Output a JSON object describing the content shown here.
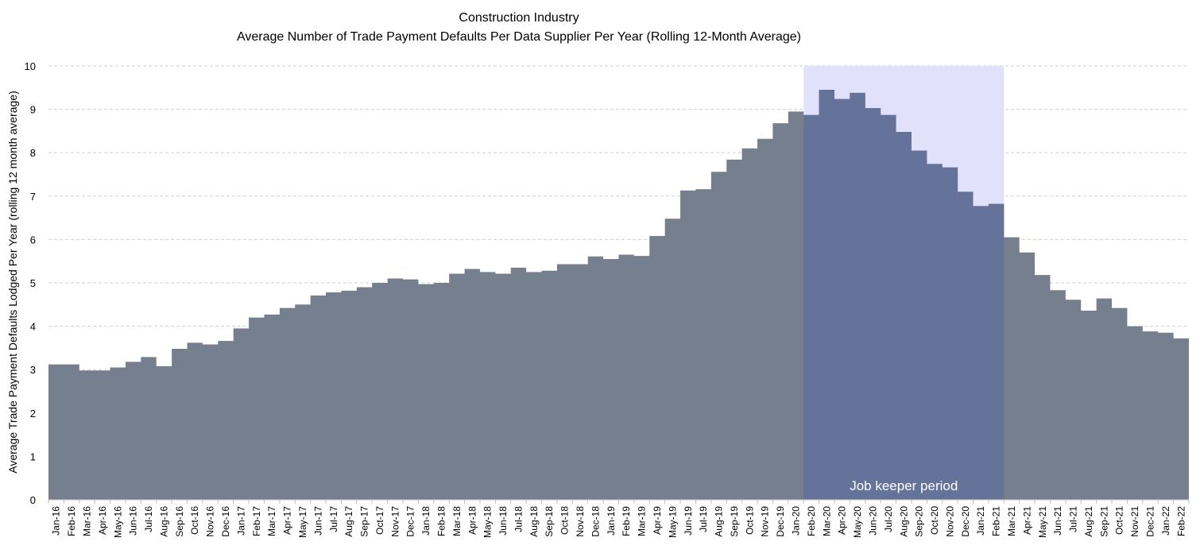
{
  "chart_data": {
    "type": "area",
    "title": "Construction Industry",
    "subtitle": "Average Number of Trade Payment Defaults Per Data Supplier Per Year (Rolling 12-Month Average)",
    "xlabel": "",
    "ylabel": "Average Trade Payment Defaults Lodged Per Year (rolling 12 month average)",
    "ylim": [
      0,
      10
    ],
    "yticks": [
      0,
      1,
      2,
      3,
      4,
      5,
      6,
      7,
      8,
      9,
      10
    ],
    "grid": true,
    "colors": {
      "area": "#757f8e",
      "highlight_fill": "#e1e1fb",
      "highlight_overlap": "#65739a",
      "grid": "#cfcfcf",
      "highlight_text": "#ffffff"
    },
    "categories": [
      "Jan-16",
      "Feb-16",
      "Mar-16",
      "Apr-16",
      "May-16",
      "Jun-16",
      "Jul-16",
      "Aug-16",
      "Sep-16",
      "Oct-16",
      "Nov-16",
      "Dec-16",
      "Jan-17",
      "Feb-17",
      "Mar-17",
      "Apr-17",
      "May-17",
      "Jun-17",
      "Jul-17",
      "Aug-17",
      "Sep-17",
      "Oct-17",
      "Nov-17",
      "Dec-17",
      "Jan-18",
      "Feb-18",
      "Mar-18",
      "Apr-18",
      "May-18",
      "Jun-18",
      "Jul-18",
      "Aug-18",
      "Sep-18",
      "Oct-18",
      "Nov-18",
      "Dec-18",
      "Jan-19",
      "Feb-19",
      "Mar-19",
      "Apr-19",
      "May-19",
      "Jun-19",
      "Jul-19",
      "Aug-19",
      "Sep-19",
      "Oct-19",
      "Nov-19",
      "Dec-19",
      "Jan-20",
      "Feb-20",
      "Mar-20",
      "Apr-20",
      "May-20",
      "Jun-20",
      "Jul-20",
      "Aug-20",
      "Sep-20",
      "Oct-20",
      "Nov-20",
      "Dec-20",
      "Jan-21",
      "Feb-21",
      "Mar-21",
      "Apr-21",
      "May-21",
      "Jun-21",
      "Jul-21",
      "Aug-21",
      "Sep-21",
      "Oct-21",
      "Nov-21",
      "Dec-21",
      "Jan-22",
      "Feb-22"
    ],
    "series": [
      {
        "values": [
          3.12,
          3.12,
          2.98,
          2.98,
          3.05,
          3.18,
          3.29,
          3.08,
          3.48,
          3.62,
          3.58,
          3.66,
          3.95,
          4.2,
          4.27,
          4.42,
          4.5,
          4.71,
          4.78,
          4.82,
          4.9,
          5.0,
          5.1,
          5.08,
          4.97,
          5.0,
          5.21,
          5.32,
          5.25,
          5.21,
          5.35,
          5.25,
          5.28,
          5.43,
          5.43,
          5.61,
          5.55,
          5.65,
          5.62,
          6.08,
          6.48,
          7.13,
          7.16,
          7.56,
          7.84,
          8.1,
          8.32,
          8.68,
          8.95,
          8.87,
          9.45,
          9.24,
          9.38,
          9.03,
          8.87,
          8.48,
          8.05,
          7.74,
          7.66,
          7.1,
          6.77,
          6.82,
          6.05,
          5.7,
          5.18,
          4.83,
          4.61,
          4.36,
          4.64,
          4.42,
          4.0,
          3.88,
          3.85,
          3.72
        ]
      }
    ],
    "highlight": {
      "label": "Job keeper period",
      "start": "Feb-20",
      "end": "Feb-21",
      "ymax": 10
    }
  }
}
